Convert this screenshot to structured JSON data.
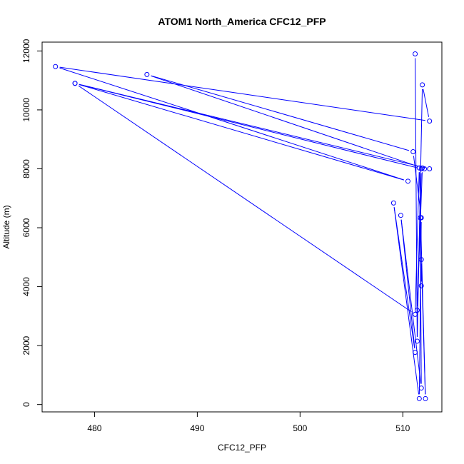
{
  "chart_data": {
    "type": "line",
    "title": "ATOM1 North_America CFC12_PFP",
    "xlabel": "CFC12_PFP",
    "ylabel": "Altitude (m)",
    "xlim": [
      474.9,
      513.8
    ],
    "ylim": [
      -250,
      12300
    ],
    "xticks": [
      480,
      490,
      500,
      510
    ],
    "yticks": [
      0,
      2000,
      4000,
      6000,
      8000,
      10000,
      12000
    ],
    "grid": false,
    "legend": "none",
    "series_color": "#0000ff",
    "points": [
      {
        "x": 511.2,
        "y": 11900
      },
      {
        "x": 511.4,
        "y": 2150
      },
      {
        "x": 511.9,
        "y": 10850
      },
      {
        "x": 512.6,
        "y": 9620
      },
      {
        "x": 476.2,
        "y": 11470
      },
      {
        "x": 510.5,
        "y": 7580
      },
      {
        "x": 478.1,
        "y": 10900
      },
      {
        "x": 511.8,
        "y": 8000
      },
      {
        "x": 511.4,
        "y": 3200
      },
      {
        "x": 511.9,
        "y": 8030
      },
      {
        "x": 485.1,
        "y": 11200
      },
      {
        "x": 511.0,
        "y": 8580
      },
      {
        "x": 511.8,
        "y": 6340
      },
      {
        "x": 511.6,
        "y": 200
      },
      {
        "x": 509.1,
        "y": 6840
      },
      {
        "x": 511.2,
        "y": 1770
      },
      {
        "x": 509.8,
        "y": 6420
      },
      {
        "x": 511.8,
        "y": 560
      },
      {
        "x": 511.7,
        "y": 6340
      },
      {
        "x": 511.8,
        "y": 4030
      },
      {
        "x": 511.8,
        "y": 4920
      },
      {
        "x": 512.2,
        "y": 200
      },
      {
        "x": 511.6,
        "y": 8030
      },
      {
        "x": 511.2,
        "y": 3060
      },
      {
        "x": 478.1,
        "y": 10900
      },
      {
        "x": 512.6,
        "y": 8000
      },
      {
        "x": 512.1,
        "y": 8000
      }
    ]
  }
}
